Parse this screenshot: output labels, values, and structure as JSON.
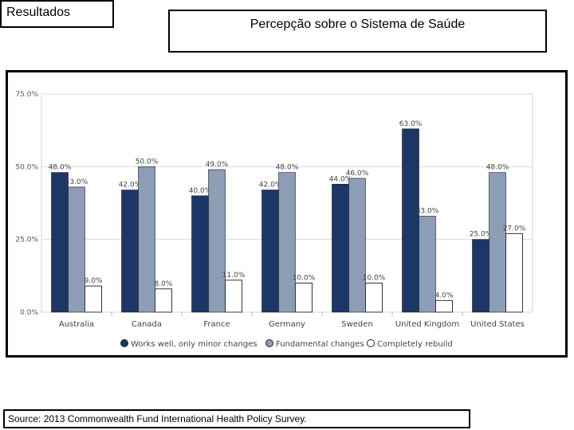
{
  "header": {
    "section_label": "Resultados",
    "title": "Percepção sobre  o  Sistema de Saúde"
  },
  "footer": {
    "source": "Source: 2013 Commonwealth Fund International Health Policy Survey."
  },
  "colors": {
    "works_well": "#1c3767",
    "fundamental": "#8c9db6",
    "rebuild": "#ffffff",
    "grid": "#d9d9d9"
  },
  "chart_data": {
    "type": "bar",
    "categories": [
      "Australia",
      "Canada",
      "France",
      "Germany",
      "Sweden",
      "United Kingdom",
      "United States"
    ],
    "series": [
      {
        "name": "Works well, only minor changes",
        "values": [
          48.0,
          42.0,
          40.0,
          42.0,
          44.0,
          63.0,
          25.0
        ],
        "labels": [
          "48.0%",
          "42.0%",
          "40.0%",
          "42.0%",
          "44.0%",
          "63.0%",
          "25.0%"
        ]
      },
      {
        "name": "Fundamental changes",
        "values": [
          43.0,
          50.0,
          49.0,
          48.0,
          46.0,
          33.0,
          48.0
        ],
        "labels": [
          "43.0%",
          "50.0%",
          "49.0%",
          "48.0%",
          "46.0%",
          "33.0%",
          "48.0%"
        ]
      },
      {
        "name": "Completely rebuild",
        "values": [
          9.0,
          8.0,
          11.0,
          10.0,
          10.0,
          4.0,
          27.0
        ],
        "labels": [
          "9.0%",
          "8.0%",
          "11.0%",
          "10.0%",
          "10.0%",
          "4.0%",
          "27.0%"
        ]
      }
    ],
    "yticks": [
      0,
      25,
      50,
      75
    ],
    "ytick_labels": [
      "0.0%",
      "25.0%",
      "50.0%",
      "75.0%"
    ],
    "ylim": [
      0,
      75
    ],
    "xlabel": "",
    "ylabel": "",
    "grid": true,
    "legend_position": "bottom"
  }
}
